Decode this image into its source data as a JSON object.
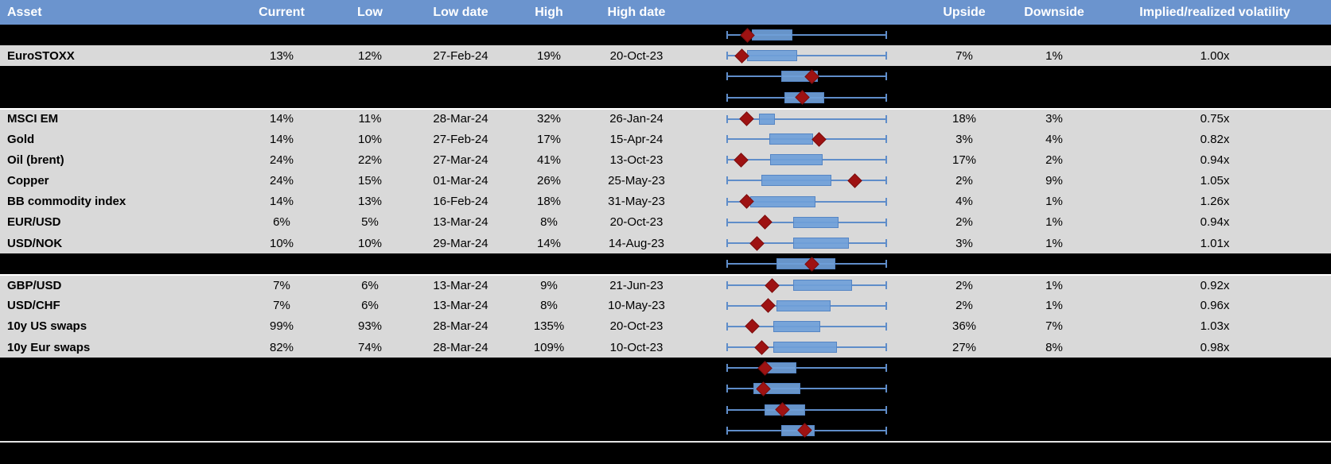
{
  "header": {
    "columns": [
      "Asset",
      "Current",
      "Low",
      "Low date",
      "High",
      "High date",
      "Upside",
      "Downside",
      "Implied/realized volatility"
    ]
  },
  "colors": {
    "header_bg": "#6b94ce",
    "header_text": "#ffffff",
    "row_bg": "#d9d9d9",
    "band_bg": "#000000",
    "whisker_blue": "#5f8dc9",
    "box_blue": "#6f9fd8",
    "diamond_red": "#9e1212"
  },
  "rows": [
    {
      "type": "black",
      "plot": {
        "box": [
          0.16,
          0.41
        ],
        "diamond": 0.13
      }
    },
    {
      "type": "data",
      "asset": "EuroSTOXX",
      "current": "13%",
      "low": "12%",
      "low_date": "27-Feb-24",
      "high": "19%",
      "high_date": "20-Oct-23",
      "upside": "7%",
      "downside": "1%",
      "implied": "1.00x",
      "plot": {
        "box": [
          0.13,
          0.44
        ],
        "diamond": 0.095
      }
    },
    {
      "type": "black",
      "plot": {
        "box": [
          0.34,
          0.57
        ],
        "diamond": 0.53
      }
    },
    {
      "type": "black",
      "plot": {
        "box": [
          0.36,
          0.61
        ],
        "diamond": 0.475
      }
    },
    {
      "type": "data",
      "separator_before": true,
      "asset": "MSCI EM",
      "current": "14%",
      "low": "11%",
      "low_date": "28-Mar-24",
      "high": "32%",
      "high_date": "26-Jan-24",
      "upside": "18%",
      "downside": "3%",
      "implied": "0.75x",
      "plot": {
        "box": [
          0.205,
          0.3
        ],
        "diamond": 0.125
      }
    },
    {
      "type": "data",
      "asset": "Gold",
      "current": "14%",
      "low": "10%",
      "low_date": "27-Feb-24",
      "high": "17%",
      "high_date": "15-Apr-24",
      "upside": "3%",
      "downside": "4%",
      "implied": "0.82x",
      "plot": {
        "box": [
          0.265,
          0.54
        ],
        "diamond": 0.575
      }
    },
    {
      "type": "data",
      "asset": "Oil (brent)",
      "current": "24%",
      "low": "22%",
      "low_date": "27-Mar-24",
      "high": "41%",
      "high_date": "13-Oct-23",
      "upside": "17%",
      "downside": "2%",
      "implied": "0.94x",
      "plot": {
        "box": [
          0.27,
          0.6
        ],
        "diamond": 0.09
      }
    },
    {
      "type": "data",
      "asset": "Copper",
      "current": "24%",
      "low": "15%",
      "low_date": "01-Mar-24",
      "high": "26%",
      "high_date": "25-May-23",
      "upside": "2%",
      "downside": "9%",
      "implied": "1.05x",
      "plot": {
        "box": [
          0.22,
          0.655
        ],
        "diamond": 0.8
      }
    },
    {
      "type": "data",
      "asset": "BB commodity index",
      "current": "14%",
      "low": "13%",
      "low_date": "16-Feb-24",
      "high": "18%",
      "high_date": "31-May-23",
      "upside": "4%",
      "downside": "1%",
      "implied": "1.26x",
      "plot": {
        "box": [
          0.15,
          0.555
        ],
        "diamond": 0.125
      }
    },
    {
      "type": "data",
      "asset": "EUR/USD",
      "current": "6%",
      "low": "5%",
      "low_date": "13-Mar-24",
      "high": "8%",
      "high_date": "20-Oct-23",
      "upside": "2%",
      "downside": "1%",
      "implied": "0.94x",
      "plot": {
        "box": [
          0.415,
          0.7
        ],
        "diamond": 0.24
      }
    },
    {
      "type": "data",
      "asset": "USD/NOK",
      "current": "10%",
      "low": "10%",
      "low_date": "29-Mar-24",
      "high": "14%",
      "high_date": "14-Aug-23",
      "upside": "3%",
      "downside": "1%",
      "implied": "1.01x",
      "plot": {
        "box": [
          0.415,
          0.76
        ],
        "diamond": 0.19
      }
    },
    {
      "type": "black",
      "plot": {
        "box": [
          0.31,
          0.68
        ],
        "diamond": 0.53
      }
    },
    {
      "type": "data",
      "separator_before": true,
      "asset": "GBP/USD",
      "current": "7%",
      "low": "6%",
      "low_date": "13-Mar-24",
      "high": "9%",
      "high_date": "21-Jun-23",
      "upside": "2%",
      "downside": "1%",
      "implied": "0.92x",
      "plot": {
        "box": [
          0.415,
          0.78
        ],
        "diamond": 0.285
      }
    },
    {
      "type": "data",
      "asset": "USD/CHF",
      "current": "7%",
      "low": "6%",
      "low_date": "13-Mar-24",
      "high": "8%",
      "high_date": "10-May-23",
      "upside": "2%",
      "downside": "1%",
      "implied": "0.96x",
      "plot": {
        "box": [
          0.31,
          0.65
        ],
        "diamond": 0.26
      }
    },
    {
      "type": "data",
      "asset": "10y US swaps",
      "current": "99%",
      "low": "93%",
      "low_date": "28-Mar-24",
      "high": "135%",
      "high_date": "20-Oct-23",
      "upside": "36%",
      "downside": "7%",
      "implied": "1.03x",
      "plot": {
        "box": [
          0.29,
          0.585
        ],
        "diamond": 0.16
      }
    },
    {
      "type": "data",
      "asset": "10y Eur swaps",
      "current": "82%",
      "low": "74%",
      "low_date": "28-Mar-24",
      "high": "109%",
      "high_date": "10-Oct-23",
      "upside": "27%",
      "downside": "8%",
      "implied": "0.98x",
      "plot": {
        "box": [
          0.29,
          0.69
        ],
        "diamond": 0.22
      }
    },
    {
      "type": "black",
      "plot": {
        "box": [
          0.245,
          0.435
        ],
        "diamond": 0.24
      }
    },
    {
      "type": "black",
      "plot": {
        "box": [
          0.17,
          0.46
        ],
        "diamond": 0.23
      }
    },
    {
      "type": "black",
      "plot": {
        "box": [
          0.24,
          0.49
        ],
        "diamond": 0.35
      }
    },
    {
      "type": "black",
      "plot": {
        "box": [
          0.34,
          0.55
        ],
        "diamond": 0.49
      }
    },
    {
      "type": "footer",
      "separator_before": true
    }
  ]
}
